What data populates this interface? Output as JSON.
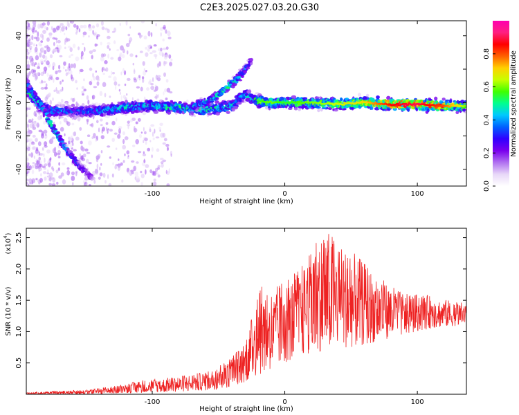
{
  "title": "C2E3.2025.027.03.20.G30",
  "colors": {
    "snr_line": "#ee2222",
    "cmap": [
      "#ffffff",
      "#e8d8f8",
      "#b070f0",
      "#7a00ee",
      "#3000ff",
      "#0060ff",
      "#00c8ff",
      "#00ff90",
      "#40ff00",
      "#c8ff00",
      "#ffd000",
      "#ff6000",
      "#ff0000",
      "#ff2080",
      "#ff00b0"
    ]
  },
  "chart_data": [
    {
      "type": "heatmap",
      "title": "C2E3.2025.027.03.20.G30",
      "xlabel": "Height of straight line (km)",
      "ylabel": "Frequency (Hz)",
      "xlim": [
        -195,
        137
      ],
      "ylim": [
        -50,
        49
      ],
      "xticks": [
        -100,
        0,
        100
      ],
      "yticks": [
        -40,
        -20,
        0,
        20,
        40
      ],
      "xtick_labels": [
        "-100",
        "0",
        "100"
      ],
      "ytick_labels": [
        "-40",
        "-20",
        "0",
        "20",
        "40"
      ],
      "colorbar": {
        "label": "Normalized spectral amplitude",
        "range": [
          0,
          1
        ],
        "ticks": [
          "0.0",
          "0.2",
          "0.4",
          "0.6",
          "0.8"
        ]
      },
      "main_ridge": [
        {
          "x": -195,
          "f": 8,
          "amp": 0.55
        },
        {
          "x": -185,
          "f": -2,
          "amp": 0.45
        },
        {
          "x": -175,
          "f": -5,
          "amp": 0.4
        },
        {
          "x": -160,
          "f": -5,
          "amp": 0.35
        },
        {
          "x": -140,
          "f": -5,
          "amp": 0.4
        },
        {
          "x": -120,
          "f": -3,
          "amp": 0.45
        },
        {
          "x": -100,
          "f": -2,
          "amp": 0.45
        },
        {
          "x": -80,
          "f": -3,
          "amp": 0.5
        },
        {
          "x": -60,
          "f": -4,
          "amp": 0.5
        },
        {
          "x": -40,
          "f": -2,
          "amp": 0.45
        },
        {
          "x": -30,
          "f": 5,
          "amp": 0.4
        },
        {
          "x": -20,
          "f": 1,
          "amp": 0.55
        },
        {
          "x": -10,
          "f": 0,
          "amp": 0.6
        },
        {
          "x": 0,
          "f": 0,
          "amp": 0.55
        },
        {
          "x": 20,
          "f": 0,
          "amp": 0.6
        },
        {
          "x": 40,
          "f": -1,
          "amp": 0.65
        },
        {
          "x": 60,
          "f": 0,
          "amp": 0.7
        },
        {
          "x": 80,
          "f": -1,
          "amp": 0.85
        },
        {
          "x": 100,
          "f": -1,
          "amp": 0.9
        },
        {
          "x": 120,
          "f": -2,
          "amp": 0.8
        },
        {
          "x": 137,
          "f": -2,
          "amp": 0.6
        }
      ],
      "descending_branch": [
        {
          "x": -195,
          "f": 12,
          "amp": 0.35
        },
        {
          "x": -185,
          "f": 0,
          "amp": 0.45
        },
        {
          "x": -175,
          "f": -15,
          "amp": 0.5
        },
        {
          "x": -165,
          "f": -28,
          "amp": 0.4
        },
        {
          "x": -155,
          "f": -38,
          "amp": 0.3
        },
        {
          "x": -145,
          "f": -45,
          "amp": 0.2
        }
      ],
      "ascending_branch": [
        {
          "x": -70,
          "f": -3,
          "amp": 0.4
        },
        {
          "x": -55,
          "f": 2,
          "amp": 0.45
        },
        {
          "x": -45,
          "f": 8,
          "amp": 0.5
        },
        {
          "x": -35,
          "f": 15,
          "amp": 0.45
        },
        {
          "x": -25,
          "f": 25,
          "amp": 0.3
        }
      ]
    },
    {
      "type": "line",
      "xlabel": "Height of straight line (km)",
      "ylabel": "SNR (10 * v/v)",
      "y_scale_label": "(x10",
      "y_scale_exp": "4",
      "xlim": [
        -195,
        137
      ],
      "ylim": [
        0,
        2.65
      ],
      "xticks": [
        -100,
        0,
        100
      ],
      "yticks": [
        0.5,
        1.0,
        1.5,
        2.0,
        2.5
      ],
      "xtick_labels": [
        "-100",
        "0",
        "100"
      ],
      "ytick_labels": [
        "0.5",
        "1.0",
        "1.5",
        "2.0",
        "2.5"
      ],
      "snr_envelope": {
        "x": [
          -195,
          -170,
          -145,
          -120,
          -110,
          -95,
          -80,
          -70,
          -60,
          -50,
          -40,
          -35,
          -30,
          -25,
          -20,
          -15,
          -10,
          -5,
          0,
          5,
          10,
          15,
          20,
          25,
          30,
          35,
          40,
          50,
          60,
          70,
          80,
          90,
          100,
          110,
          120,
          137
        ],
        "upper": [
          0.03,
          0.05,
          0.08,
          0.16,
          0.22,
          0.25,
          0.28,
          0.33,
          0.35,
          0.45,
          0.62,
          0.72,
          0.82,
          1.22,
          1.75,
          1.7,
          1.6,
          1.75,
          1.82,
          1.9,
          2.0,
          2.1,
          2.3,
          2.55,
          2.62,
          2.55,
          2.45,
          2.3,
          2.1,
          1.9,
          1.75,
          1.6,
          1.6,
          1.58,
          1.52,
          1.45
        ],
        "lower": [
          0.0,
          0.0,
          0.0,
          0.02,
          0.02,
          0.03,
          0.04,
          0.05,
          0.06,
          0.08,
          0.12,
          0.15,
          0.2,
          0.25,
          0.3,
          0.35,
          0.4,
          0.45,
          0.5,
          0.55,
          0.6,
          0.62,
          0.65,
          0.68,
          0.7,
          0.72,
          0.74,
          0.75,
          0.78,
          0.85,
          0.9,
          0.95,
          1.0,
          1.05,
          1.08,
          1.1
        ]
      }
    }
  ]
}
